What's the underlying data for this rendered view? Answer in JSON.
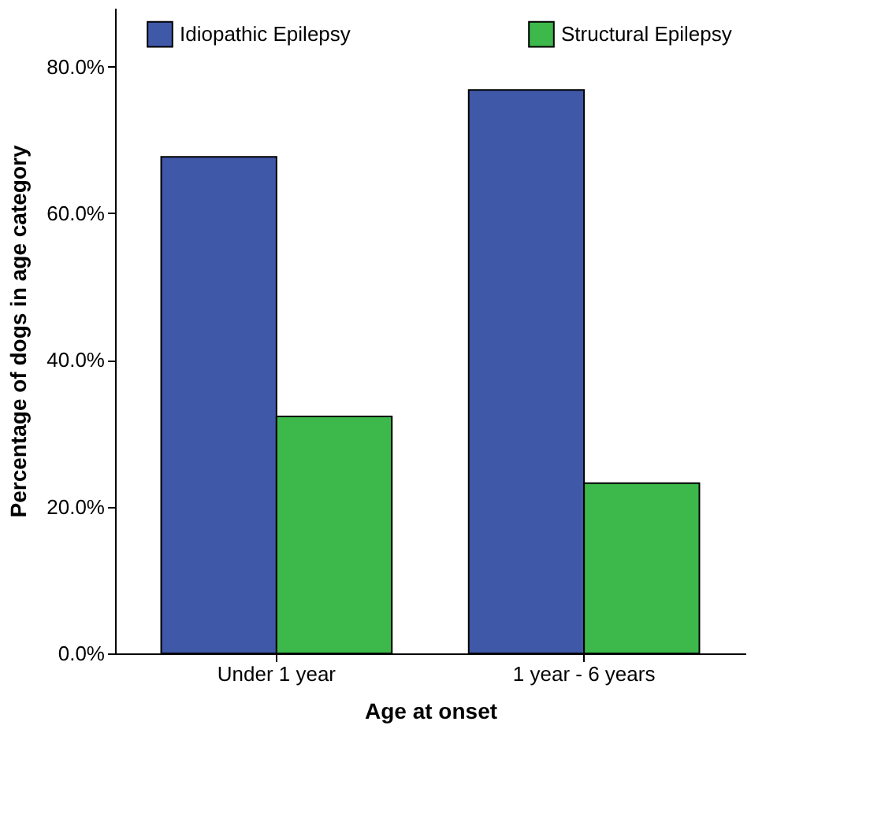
{
  "chart_data": {
    "type": "bar",
    "xlabel": "Age at onset",
    "ylabel": "Percentage of dogs in age category",
    "categories": [
      "Under 1 year",
      "1 year - 6 years"
    ],
    "series": [
      {
        "name": "Idiopathic Epilepsy",
        "color": "#3f58a8",
        "values": [
          67.7,
          76.8
        ]
      },
      {
        "name": "Structural Epilepsy",
        "color": "#3cb94a",
        "values": [
          32.3,
          23.2
        ]
      }
    ],
    "ylim": [
      0,
      88
    ],
    "yticks": [
      {
        "value": 0,
        "label": "0.0%"
      },
      {
        "value": 20,
        "label": "20.0%"
      },
      {
        "value": 40,
        "label": "40.0%"
      },
      {
        "value": 60,
        "label": "60.0%"
      },
      {
        "value": 80,
        "label": "80.0%"
      }
    ],
    "grid": false,
    "legend": "top"
  }
}
